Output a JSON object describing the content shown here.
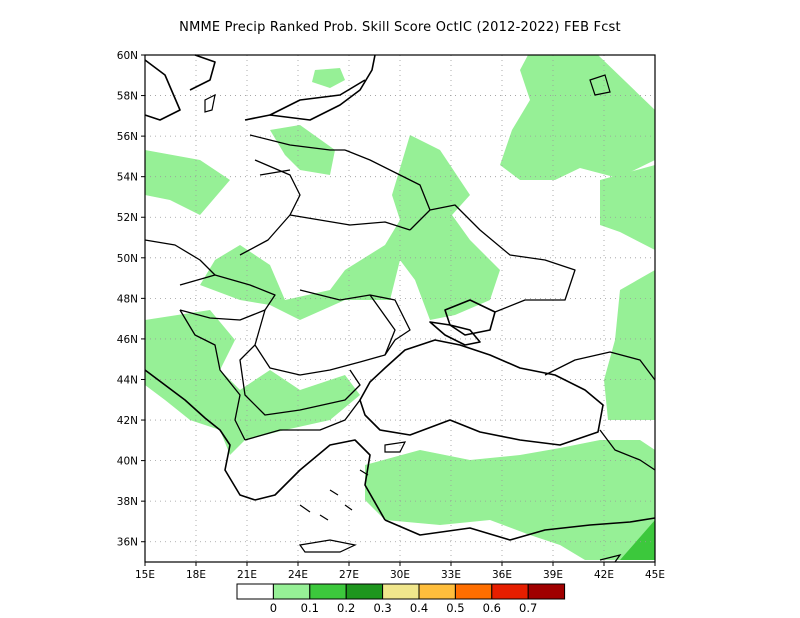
{
  "title": "NMME Precip Ranked Prob. Skill Score OctIC (2012-2022) FEB Fcst",
  "map": {
    "lon_range": [
      15,
      45
    ],
    "lat_range": [
      35,
      60
    ],
    "lat_ticks": [
      "60N",
      "58N",
      "56N",
      "54N",
      "52N",
      "50N",
      "48N",
      "46N",
      "44N",
      "42N",
      "40N",
      "38N",
      "36N"
    ],
    "lon_ticks": [
      "15E",
      "18E",
      "21E",
      "24E",
      "27E",
      "30E",
      "33E",
      "36E",
      "39E",
      "42E",
      "45E"
    ]
  },
  "colorbar": {
    "colors": [
      "#ffffff",
      "#96f096",
      "#3cc83c",
      "#1e961e",
      "#f0e68c",
      "#ffbe3c",
      "#ff6e00",
      "#e61e00",
      "#a00000"
    ],
    "labels": [
      "0",
      "0.1",
      "0.2",
      "0.3",
      "0.4",
      "0.5",
      "0.6",
      "0.7"
    ]
  }
}
